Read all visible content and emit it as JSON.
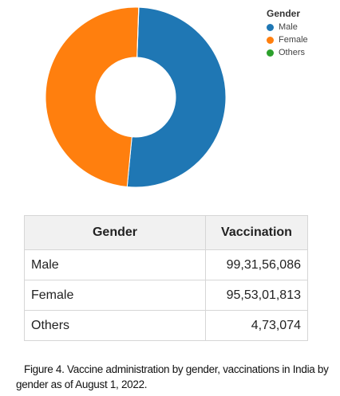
{
  "chart_data": {
    "type": "pie",
    "legend_title": "Gender",
    "legend_position": "top-right",
    "categories": [
      "Male",
      "Female",
      "Others"
    ],
    "values": [
      993156086,
      955301813,
      473074
    ],
    "colors": [
      "#1f77b4",
      "#ff7f0e",
      "#2ca02c"
    ]
  },
  "table": {
    "headers": [
      "Gender",
      "Vaccination"
    ],
    "rows": [
      [
        "Male",
        "99,31,56,086"
      ],
      [
        "Female",
        "95,53,01,813"
      ],
      [
        "Others",
        "4,73,074"
      ]
    ]
  },
  "caption": {
    "label": "Figure 4.",
    "text": "Vaccine administration by gender, vaccinations in India by gender as of August 1, 2022."
  }
}
